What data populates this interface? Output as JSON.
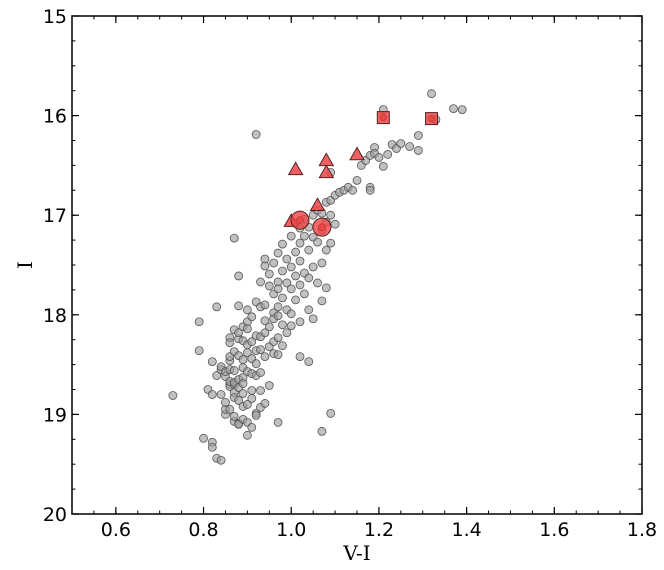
{
  "chart_data": {
    "type": "scatter",
    "title": "",
    "xlabel": "V-I",
    "ylabel": "I",
    "xlim": [
      0.5,
      1.8
    ],
    "ylim": [
      15,
      20
    ],
    "y_inverted": true,
    "x_ticks": [
      0.6,
      0.8,
      1.0,
      1.2,
      1.4,
      1.6,
      1.8
    ],
    "x_tick_labels": [
      "0.6",
      "0.8",
      "1.0",
      "1.2",
      "1.4",
      "1.6",
      "1.8"
    ],
    "y_ticks": [
      15,
      16,
      17,
      18,
      19,
      20
    ],
    "y_tick_labels": [
      "15",
      "16",
      "17",
      "18",
      "19",
      "20"
    ],
    "grid": false,
    "legend": "none",
    "series": [
      {
        "marker": "circle",
        "color": "#a0a0a0",
        "points": [
          [
            0.73,
            18.81
          ],
          [
            0.79,
            18.07
          ],
          [
            0.79,
            18.36
          ],
          [
            0.8,
            19.24
          ],
          [
            0.81,
            18.75
          ],
          [
            0.82,
            19.28
          ],
          [
            0.82,
            19.33
          ],
          [
            0.82,
            18.8
          ],
          [
            0.82,
            18.47
          ],
          [
            0.83,
            19.44
          ],
          [
            0.83,
            18.61
          ],
          [
            0.83,
            17.92
          ],
          [
            0.84,
            19.46
          ],
          [
            0.84,
            18.55
          ],
          [
            0.84,
            18.52
          ],
          [
            0.84,
            18.8
          ],
          [
            0.85,
            19.0
          ],
          [
            0.85,
            18.95
          ],
          [
            0.85,
            18.62
          ],
          [
            0.85,
            18.88
          ],
          [
            0.85,
            18.57
          ],
          [
            0.86,
            18.7
          ],
          [
            0.86,
            18.23
          ],
          [
            0.86,
            18.72
          ],
          [
            0.86,
            18.46
          ],
          [
            0.86,
            18.28
          ],
          [
            0.86,
            18.95
          ],
          [
            0.86,
            18.55
          ],
          [
            0.86,
            18.42
          ],
          [
            0.86,
            18.67
          ],
          [
            0.87,
            17.23
          ],
          [
            0.87,
            18.15
          ],
          [
            0.87,
            18.7
          ],
          [
            0.87,
            19.07
          ],
          [
            0.87,
            18.78
          ],
          [
            0.87,
            18.37
          ],
          [
            0.87,
            19.02
          ],
          [
            0.87,
            18.56
          ],
          [
            0.87,
            18.83
          ],
          [
            0.87,
            18.68
          ],
          [
            0.88,
            17.61
          ],
          [
            0.88,
            18.24
          ],
          [
            0.88,
            17.91
          ],
          [
            0.88,
            19.09
          ],
          [
            0.88,
            18.65
          ],
          [
            0.88,
            18.18
          ],
          [
            0.88,
            18.41
          ],
          [
            0.88,
            18.86
          ],
          [
            0.88,
            18.73
          ],
          [
            0.88,
            19.1
          ],
          [
            0.89,
            18.26
          ],
          [
            0.89,
            18.12
          ],
          [
            0.89,
            18.92
          ],
          [
            0.89,
            18.63
          ],
          [
            0.89,
            18.53
          ],
          [
            0.89,
            18.45
          ],
          [
            0.89,
            19.05
          ],
          [
            0.89,
            18.69
          ],
          [
            0.89,
            18.79
          ],
          [
            0.9,
            19.21
          ],
          [
            0.9,
            18.07
          ],
          [
            0.9,
            17.95
          ],
          [
            0.9,
            18.3
          ],
          [
            0.9,
            18.57
          ],
          [
            0.9,
            18.9
          ],
          [
            0.9,
            19.08
          ],
          [
            0.9,
            18.38
          ],
          [
            0.9,
            18.14
          ],
          [
            0.91,
            18.02
          ],
          [
            0.91,
            19.13
          ],
          [
            0.91,
            18.44
          ],
          [
            0.91,
            18.76
          ],
          [
            0.91,
            18.27
          ],
          [
            0.91,
            18.59
          ],
          [
            0.91,
            18.84
          ],
          [
            0.92,
            18.21
          ],
          [
            0.92,
            17.87
          ],
          [
            0.92,
            18.99
          ],
          [
            0.92,
            16.19
          ],
          [
            0.92,
            18.36
          ],
          [
            0.92,
            18.49
          ],
          [
            0.92,
            18.61
          ],
          [
            0.92,
            19.01
          ],
          [
            0.93,
            17.67
          ],
          [
            0.93,
            17.92
          ],
          [
            0.93,
            18.22
          ],
          [
            0.93,
            18.35
          ],
          [
            0.93,
            18.58
          ],
          [
            0.93,
            18.76
          ],
          [
            0.93,
            18.93
          ],
          [
            0.94,
            17.44
          ],
          [
            0.94,
            17.51
          ],
          [
            0.94,
            17.9
          ],
          [
            0.94,
            18.06
          ],
          [
            0.94,
            18.18
          ],
          [
            0.94,
            18.42
          ],
          [
            0.94,
            18.89
          ],
          [
            0.95,
            17.59
          ],
          [
            0.95,
            17.71
          ],
          [
            0.95,
            18.12
          ],
          [
            0.95,
            18.32
          ],
          [
            0.95,
            18.71
          ],
          [
            0.96,
            17.48
          ],
          [
            0.96,
            17.79
          ],
          [
            0.96,
            17.98
          ],
          [
            0.96,
            18.04
          ],
          [
            0.96,
            18.27
          ],
          [
            0.96,
            18.39
          ],
          [
            0.97,
            17.38
          ],
          [
            0.97,
            17.67
          ],
          [
            0.97,
            17.74
          ],
          [
            0.97,
            17.92
          ],
          [
            0.97,
            18.01
          ],
          [
            0.97,
            18.23
          ],
          [
            0.97,
            18.4
          ],
          [
            0.97,
            19.08
          ],
          [
            0.98,
            17.29
          ],
          [
            0.98,
            17.56
          ],
          [
            0.98,
            17.83
          ],
          [
            0.98,
            18.1
          ],
          [
            0.98,
            18.31
          ],
          [
            0.99,
            17.44
          ],
          [
            0.99,
            17.68
          ],
          [
            0.99,
            17.95
          ],
          [
            0.99,
            18.18
          ],
          [
            1.0,
            17.21
          ],
          [
            1.0,
            17.52
          ],
          [
            1.0,
            17.74
          ],
          [
            1.0,
            17.99
          ],
          [
            1.0,
            18.11
          ],
          [
            1.01,
            17.08
          ],
          [
            1.01,
            17.37
          ],
          [
            1.01,
            17.61
          ],
          [
            1.01,
            17.85
          ],
          [
            1.02,
            17.13
          ],
          [
            1.02,
            17.28
          ],
          [
            1.02,
            17.46
          ],
          [
            1.02,
            17.7
          ],
          [
            1.02,
            18.07
          ],
          [
            1.02,
            18.42
          ],
          [
            1.03,
            17.04
          ],
          [
            1.03,
            17.21
          ],
          [
            1.03,
            17.58
          ],
          [
            1.03,
            17.79
          ],
          [
            1.04,
            17.12
          ],
          [
            1.04,
            17.35
          ],
          [
            1.04,
            17.63
          ],
          [
            1.04,
            17.95
          ],
          [
            1.04,
            18.47
          ],
          [
            1.05,
            17.0
          ],
          [
            1.05,
            17.22
          ],
          [
            1.05,
            17.52
          ],
          [
            1.05,
            18.04
          ],
          [
            1.06,
            16.95
          ],
          [
            1.06,
            17.27
          ],
          [
            1.06,
            17.68
          ],
          [
            1.07,
            16.98
          ],
          [
            1.07,
            17.15
          ],
          [
            1.07,
            17.48
          ],
          [
            1.07,
            17.86
          ],
          [
            1.07,
            19.17
          ],
          [
            1.08,
            16.87
          ],
          [
            1.08,
            17.07
          ],
          [
            1.08,
            17.35
          ],
          [
            1.08,
            17.73
          ],
          [
            1.09,
            16.57
          ],
          [
            1.09,
            16.85
          ],
          [
            1.09,
            17.0
          ],
          [
            1.09,
            17.28
          ],
          [
            1.09,
            18.99
          ],
          [
            1.1,
            16.8
          ],
          [
            1.1,
            17.09
          ],
          [
            1.11,
            16.77
          ],
          [
            1.12,
            16.75
          ],
          [
            1.13,
            16.72
          ],
          [
            1.14,
            16.75
          ],
          [
            1.15,
            16.65
          ],
          [
            1.16,
            16.5
          ],
          [
            1.17,
            16.45
          ],
          [
            1.18,
            16.4
          ],
          [
            1.18,
            16.72
          ],
          [
            1.18,
            16.75
          ],
          [
            1.19,
            16.32
          ],
          [
            1.19,
            16.38
          ],
          [
            1.2,
            16.42
          ],
          [
            1.21,
            16.51
          ],
          [
            1.22,
            16.39
          ],
          [
            1.23,
            16.29
          ],
          [
            1.24,
            16.33
          ],
          [
            1.25,
            16.28
          ],
          [
            1.27,
            16.31
          ],
          [
            1.29,
            16.35
          ],
          [
            1.29,
            16.2
          ],
          [
            1.32,
            15.78
          ],
          [
            1.37,
            15.93
          ],
          [
            1.39,
            15.94
          ],
          [
            1.21,
            15.94
          ],
          [
            1.33,
            16.04
          ]
        ]
      },
      {
        "marker": "triangle",
        "color": "#ee4444",
        "points": [
          [
            1.01,
            16.54
          ],
          [
            1.08,
            16.45
          ],
          [
            1.15,
            16.39
          ],
          [
            1.08,
            16.57
          ],
          [
            1.06,
            16.9
          ],
          [
            1.0,
            17.06
          ]
        ]
      },
      {
        "marker": "square",
        "color": "#ee4444",
        "points": [
          [
            1.21,
            16.02
          ],
          [
            1.32,
            16.03
          ]
        ]
      },
      {
        "marker": "large-circle",
        "color": "#ee4444",
        "points": [
          [
            1.02,
            17.05
          ],
          [
            1.07,
            17.12
          ]
        ]
      }
    ]
  }
}
